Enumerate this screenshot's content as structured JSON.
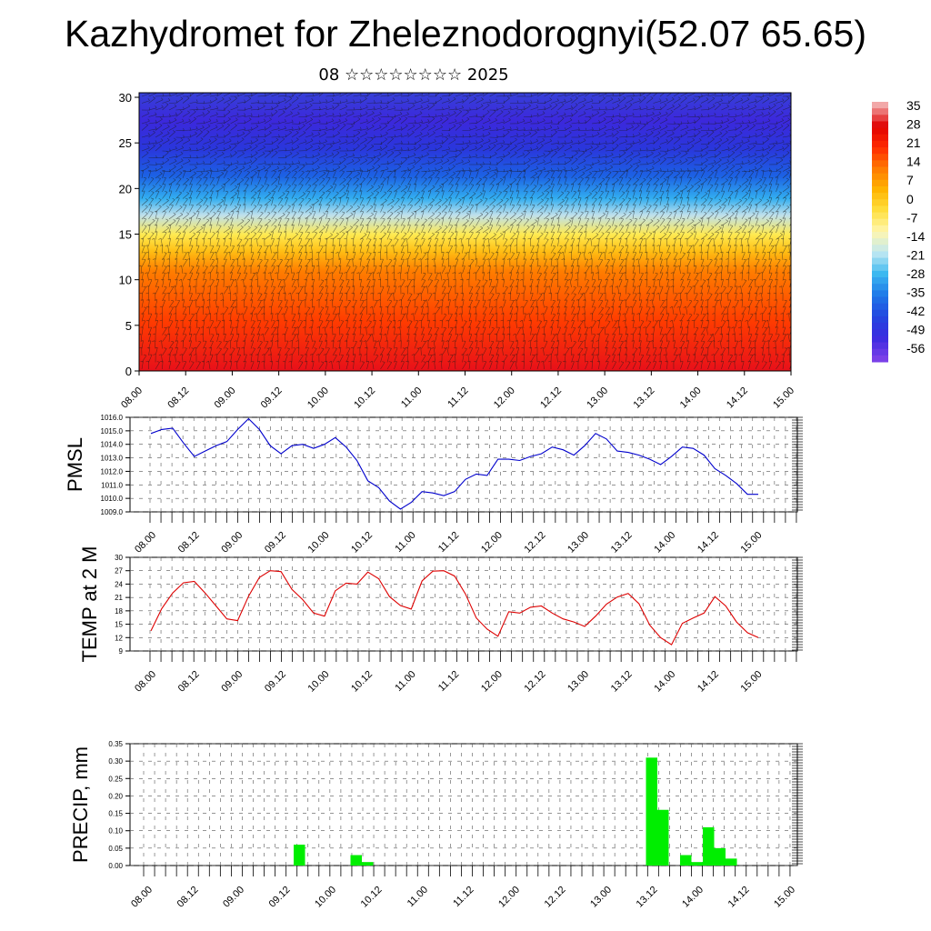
{
  "title": "Kazhydromet for Zheleznodorognyi(52.07 65.65)",
  "subtitle": "08 ☆☆☆☆☆☆☆☆ 2025",
  "chart_data": [
    {
      "type": "heatmap",
      "name": "temperature-wind-cross-section",
      "x_ticks": [
        "08.00",
        "08.12",
        "09.00",
        "09.12",
        "10.00",
        "10.12",
        "11.00",
        "11.12",
        "12.00",
        "12.12",
        "13.00",
        "13.12",
        "14.00",
        "14.12",
        "15.00"
      ],
      "y_ticks": [
        0,
        5,
        10,
        15,
        20,
        25,
        30
      ],
      "ylim": [
        0,
        30.5
      ],
      "colorbar_labels": [
        35,
        28,
        21,
        14,
        7,
        0,
        -7,
        -14,
        -21,
        -28,
        -35,
        -42,
        -49,
        -56
      ],
      "color_stops": [
        "#f2a8a8",
        "#e00000",
        "#ff2a00",
        "#ff7a00",
        "#ffb400",
        "#ffe040",
        "#fff6b0",
        "#bfe8f2",
        "#3cb8f0",
        "#1e78e8",
        "#2448e0",
        "#3a2ae0",
        "#7a40e8"
      ],
      "field_description": "temperature shading with wind barbs"
    },
    {
      "type": "line",
      "name": "pmsl",
      "ylabel": "PMSL",
      "ylim": [
        1009.0,
        1016.0
      ],
      "y_ticks": [
        "1009.0",
        "1010.0",
        "1011.0",
        "1012.0",
        "1013.0",
        "1014.0",
        "1015.0",
        "1016.0"
      ],
      "x_ticks": [
        "08.00",
        "08.12",
        "09.00",
        "09.12",
        "10.00",
        "10.12",
        "11.00",
        "11.12",
        "12.00",
        "12.12",
        "13.00",
        "13.12",
        "14.00",
        "14.12",
        "15.00"
      ],
      "color": "#0000cc",
      "values": [
        1014.8,
        1015.1,
        1015.2,
        1014.1,
        1013.1,
        1013.5,
        1013.9,
        1014.2,
        1015.1,
        1015.9,
        1015.1,
        1013.9,
        1013.3,
        1013.9,
        1014.0,
        1013.7,
        1014.0,
        1014.5,
        1013.8,
        1012.8,
        1011.3,
        1010.8,
        1009.8,
        1009.2,
        1009.7,
        1010.5,
        1010.4,
        1010.2,
        1010.5,
        1011.4,
        1011.8,
        1011.7,
        1012.9,
        1012.9,
        1012.8,
        1013.1,
        1013.3,
        1013.8,
        1013.6,
        1013.2,
        1013.9,
        1014.8,
        1014.4,
        1013.5,
        1013.4,
        1013.2,
        1012.9,
        1012.5,
        1013.1,
        1013.8,
        1013.7,
        1013.2,
        1012.2,
        1011.7,
        1011.1,
        1010.3,
        1010.3
      ]
    },
    {
      "type": "line",
      "name": "temp-2m",
      "ylabel": "TEMP at 2 M",
      "ylim": [
        9,
        30
      ],
      "y_ticks": [
        9,
        12,
        15,
        18,
        21,
        24,
        27,
        30
      ],
      "x_ticks": [
        "08.00",
        "08.12",
        "09.00",
        "09.12",
        "10.00",
        "10.12",
        "11.00",
        "11.12",
        "12.00",
        "12.12",
        "13.00",
        "13.12",
        "14.00",
        "14.12",
        "15.00"
      ],
      "color": "#dd0000",
      "values": [
        13.5,
        18.5,
        22,
        24.3,
        24.6,
        22,
        19.1,
        16.2,
        15.8,
        21.3,
        25.5,
        27,
        26.8,
        22.8,
        20.5,
        17.5,
        16.8,
        22.5,
        24.2,
        24,
        26.7,
        25.2,
        21.2,
        19.2,
        18.4,
        24.7,
        26.9,
        27,
        25.8,
        21.8,
        16.4,
        13.9,
        12.3,
        17.8,
        17.5,
        18.8,
        19.1,
        17.5,
        16.2,
        15.5,
        14.5,
        16.8,
        19.5,
        21.1,
        21.9,
        19.6,
        14.8,
        12,
        10.4,
        15.2,
        16.4,
        17.5,
        21.2,
        19.1,
        15.5,
        13.1,
        12
      ]
    },
    {
      "type": "bar",
      "name": "precip",
      "ylabel": "PRECIP, mm",
      "ylim": [
        0.0,
        0.35
      ],
      "y_ticks": [
        "0.00",
        "0.05",
        "0.10",
        "0.15",
        "0.20",
        "0.25",
        "0.30",
        "0.35"
      ],
      "x_ticks": [
        "08.00",
        "08.12",
        "09.00",
        "09.12",
        "10.00",
        "10.12",
        "11.00",
        "11.12",
        "12.00",
        "12.12",
        "13.00",
        "13.12",
        "14.00",
        "14.12",
        "15.00"
      ],
      "color": "#00ee00",
      "values": [
        0,
        0,
        0,
        0,
        0,
        0,
        0,
        0,
        0,
        0,
        0,
        0,
        0,
        0,
        0,
        0,
        0.06,
        0,
        0,
        0,
        0,
        0.03,
        0.01,
        0,
        0,
        0,
        0,
        0,
        0,
        0,
        0,
        0,
        0,
        0,
        0,
        0,
        0,
        0,
        0,
        0,
        0,
        0,
        0,
        0,
        0,
        0,
        0,
        0.31,
        0.16,
        0,
        0.03,
        0.01,
        0.11,
        0.05,
        0.02,
        0,
        0,
        0,
        0,
        0,
        0,
        0,
        0,
        0,
        0,
        0,
        0,
        0,
        0,
        0,
        0,
        0,
        0,
        0,
        0,
        0,
        0,
        0,
        0,
        0,
        0,
        0,
        0,
        0,
        0,
        0
      ]
    }
  ]
}
